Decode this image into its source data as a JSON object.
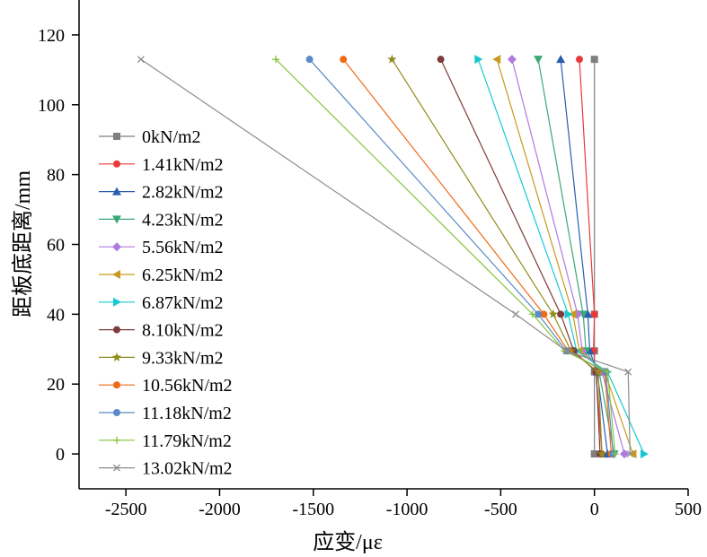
{
  "chart_data": {
    "type": "line",
    "title": "",
    "xlabel": "应变/με",
    "ylabel": "距板底距离/mm",
    "xlim": [
      -2750,
      500
    ],
    "ylim": [
      -10,
      130
    ],
    "xticks": [
      -2500,
      -2000,
      -1500,
      -1000,
      -500,
      0,
      500
    ],
    "yticks": [
      0,
      20,
      40,
      60,
      80,
      100,
      120
    ],
    "grid": false,
    "legend_position": "left-center",
    "y_points": [
      0,
      23.5,
      29.5,
      40,
      113
    ],
    "series": [
      {
        "name": "0kN/m2",
        "color": "#7f7f7f",
        "marker": "square",
        "x": [
          0,
          0,
          0,
          0,
          0
        ]
      },
      {
        "name": "1.41kN/m2",
        "color": "#e8393b",
        "marker": "circle",
        "x": [
          40,
          8,
          -5,
          0,
          -80
        ]
      },
      {
        "name": "2.82kN/m2",
        "color": "#2a5db0",
        "marker": "triangle-up",
        "x": [
          70,
          15,
          -25,
          -35,
          -180
        ]
      },
      {
        "name": "4.23kN/m2",
        "color": "#3aa876",
        "marker": "triangle-down",
        "x": [
          105,
          25,
          -45,
          -60,
          -300
        ]
      },
      {
        "name": "5.56kN/m2",
        "color": "#b07ae0",
        "marker": "diamond",
        "x": [
          160,
          40,
          -65,
          -90,
          -440
        ]
      },
      {
        "name": "6.25kN/m2",
        "color": "#c89a1c",
        "marker": "triangle-left",
        "x": [
          205,
          55,
          -80,
          -115,
          -520
        ]
      },
      {
        "name": "6.87kN/m2",
        "color": "#18c8d0",
        "marker": "triangle-right",
        "x": [
          265,
          70,
          -95,
          -140,
          -620
        ]
      },
      {
        "name": "8.10kN/m2",
        "color": "#7e3b3b",
        "marker": "circle",
        "x": [
          30,
          10,
          -110,
          -180,
          -820
        ]
      },
      {
        "name": "9.33kN/m2",
        "color": "#8f8c1a",
        "marker": "star",
        "x": [
          40,
          20,
          -125,
          -220,
          -1080
        ]
      },
      {
        "name": "10.56kN/m2",
        "color": "#ef6a13",
        "marker": "circle",
        "x": [
          90,
          55,
          -140,
          -270,
          -1340
        ]
      },
      {
        "name": "11.18kN/m2",
        "color": "#5a88c8",
        "marker": "circle",
        "x": [
          100,
          60,
          -150,
          -300,
          -1520
        ]
      },
      {
        "name": "11.79kN/m2",
        "color": "#84c43a",
        "marker": "plus",
        "x": [
          110,
          70,
          -160,
          -330,
          -1700
        ]
      },
      {
        "name": "13.02kN/m2",
        "color": "#8c8c8c",
        "marker": "cross",
        "x": [
          190,
          180,
          -150,
          -420,
          -2420
        ]
      }
    ]
  }
}
